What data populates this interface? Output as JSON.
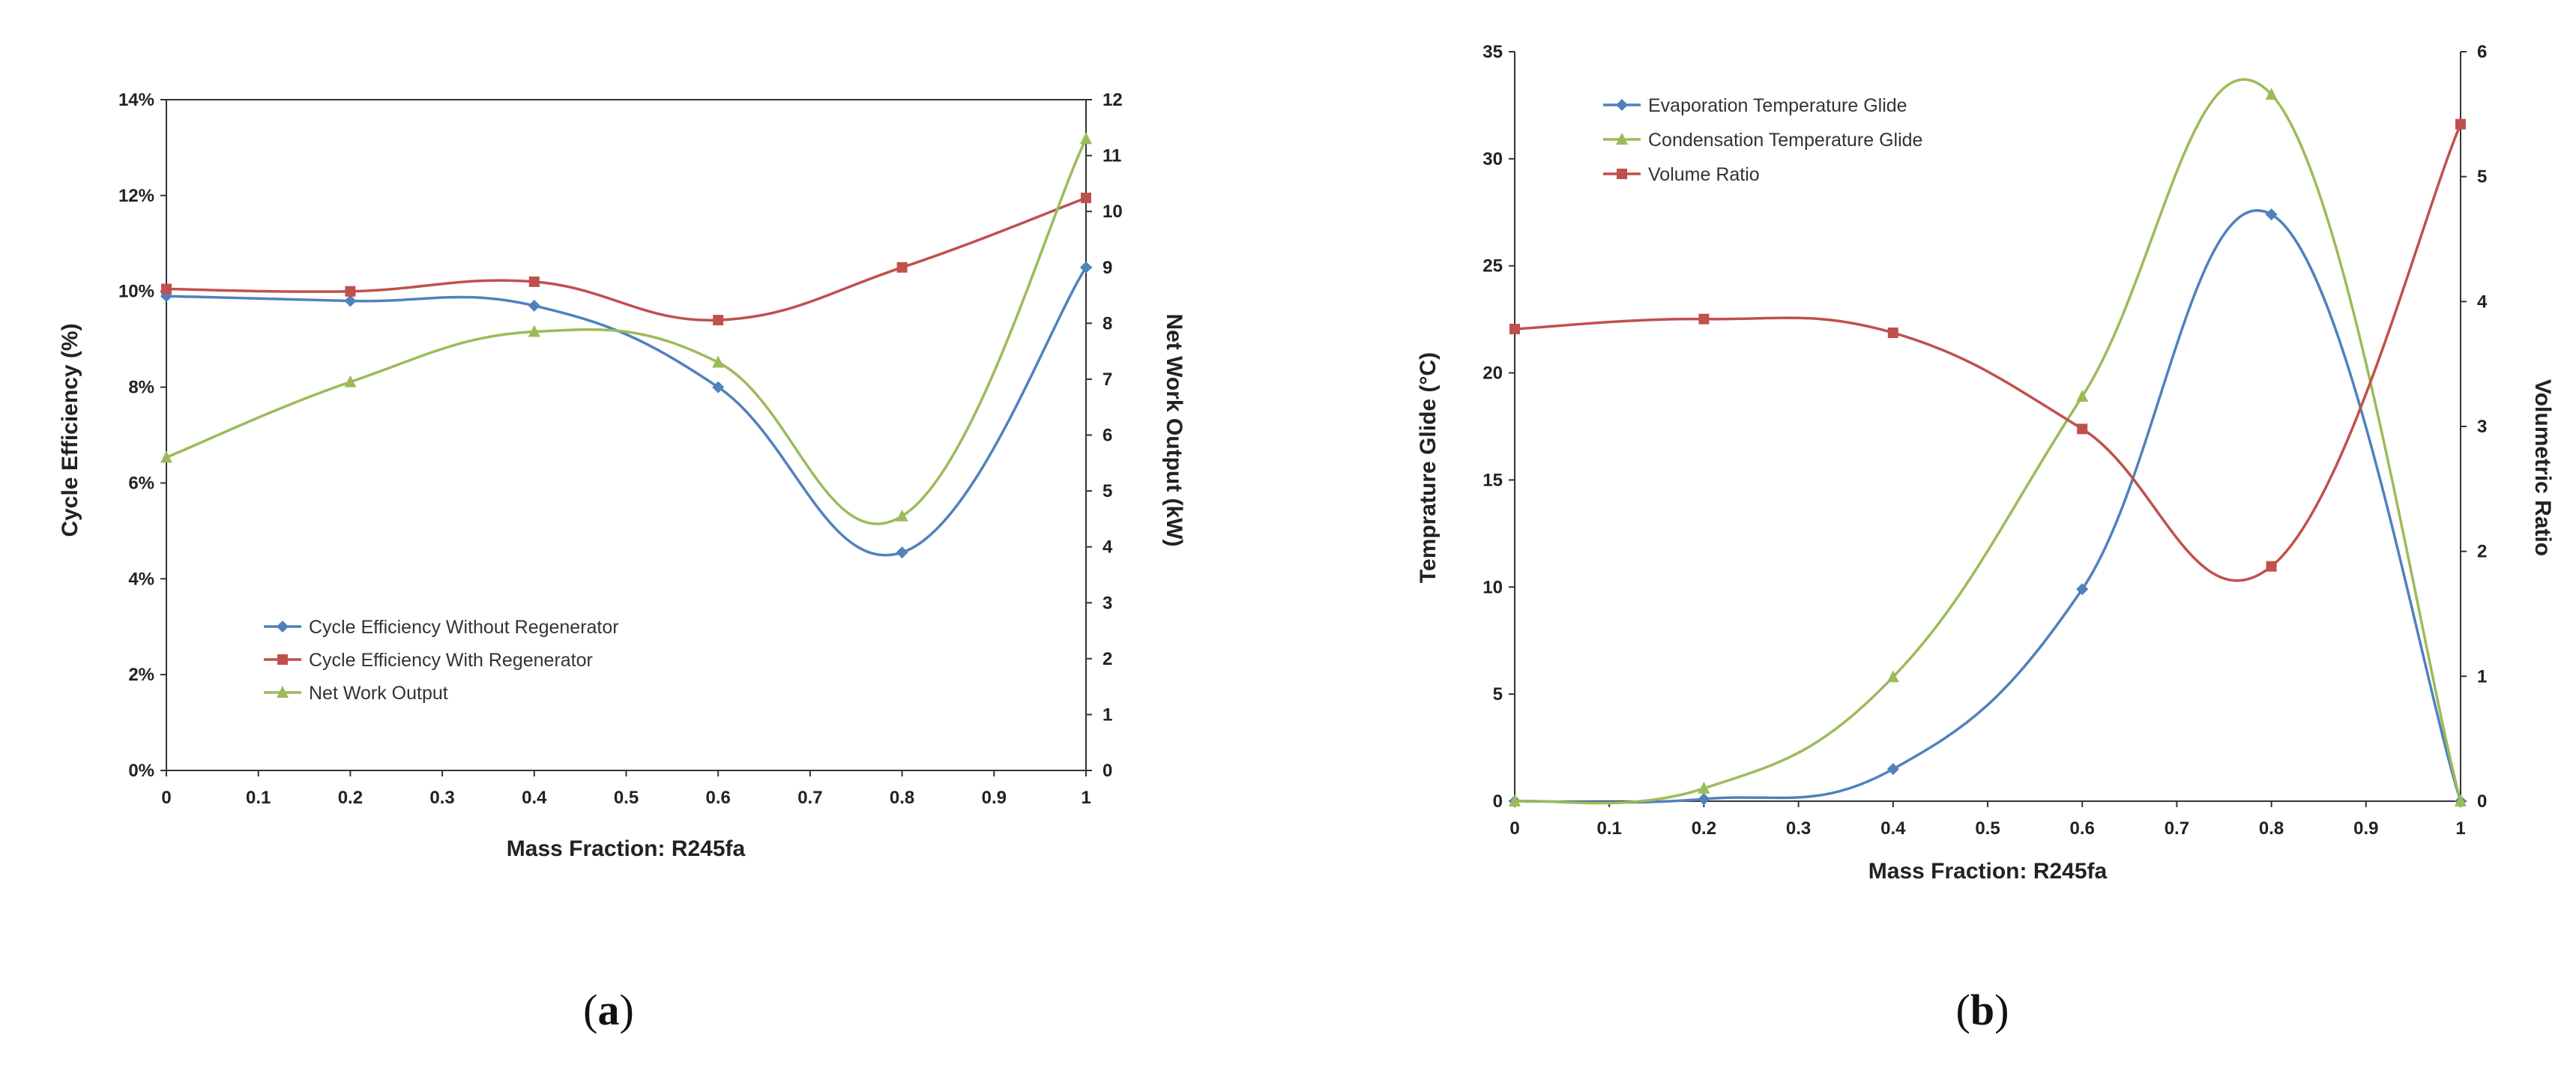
{
  "chart_data": [
    {
      "type": "line",
      "panel": "a",
      "caption_letter": "a",
      "xlabel": "Mass Fraction: R245fa",
      "ylabel": "Cycle Efficiency (%)",
      "y2label": "Net Work Output (kW)",
      "x": [
        0,
        0.2,
        0.4,
        0.6,
        0.8,
        1
      ],
      "xlim": [
        0,
        1
      ],
      "xticks": [
        "0",
        "0.1",
        "0.2",
        "0.3",
        "0.4",
        "0.5",
        "0.6",
        "0.7",
        "0.8",
        "0.9",
        "1"
      ],
      "ylim": [
        0,
        14
      ],
      "yticks": [
        "0%",
        "2%",
        "4%",
        "6%",
        "8%",
        "10%",
        "12%",
        "14%"
      ],
      "y2lim": [
        0,
        12
      ],
      "y2ticks": [
        "0",
        "1",
        "2",
        "3",
        "4",
        "5",
        "6",
        "7",
        "8",
        "9",
        "10",
        "11",
        "12"
      ],
      "legend_position": "bottom-left",
      "series": [
        {
          "name": "Cycle Efficiency Without Regenerator",
          "axis": "left",
          "color": "#4f81bd",
          "marker": "diamond",
          "values": [
            9.9,
            9.8,
            9.7,
            8.0,
            4.55,
            10.5
          ]
        },
        {
          "name": "Cycle Efficiency With Regenerator",
          "axis": "left",
          "color": "#c0504d",
          "marker": "square",
          "values": [
            10.05,
            10.0,
            10.2,
            9.4,
            10.5,
            11.95
          ]
        },
        {
          "name": "Net Work Output",
          "axis": "right",
          "color": "#9bbb59",
          "marker": "triangle",
          "values": [
            5.6,
            6.95,
            7.85,
            7.3,
            4.55,
            11.3
          ]
        }
      ]
    },
    {
      "type": "line",
      "panel": "b",
      "caption_letter": "b",
      "xlabel": "Mass Fraction: R245fa",
      "ylabel": "Temprature Glide (°C)",
      "y2label": "Volumetric Ratio",
      "x": [
        0,
        0.2,
        0.4,
        0.6,
        0.8,
        1
      ],
      "xlim": [
        0,
        1
      ],
      "xticks": [
        "0",
        "0.1",
        "0.2",
        "0.3",
        "0.4",
        "0.5",
        "0.6",
        "0.7",
        "0.8",
        "0.9",
        "1"
      ],
      "ylim": [
        0,
        35
      ],
      "yticks": [
        "0",
        "5",
        "10",
        "15",
        "20",
        "25",
        "30",
        "35"
      ],
      "y2lim": [
        0,
        6
      ],
      "y2ticks": [
        "0",
        "1",
        "2",
        "3",
        "4",
        "5",
        "6"
      ],
      "legend_position": "top-left",
      "series": [
        {
          "name": "Evaporation Temperature Glide",
          "axis": "left",
          "color": "#4f81bd",
          "marker": "diamond",
          "values": [
            0,
            0.1,
            1.5,
            9.9,
            27.4,
            0
          ]
        },
        {
          "name": "Condensation Temperature Glide",
          "axis": "left",
          "color": "#9bbb59",
          "marker": "triangle",
          "values": [
            0,
            0.6,
            5.8,
            18.9,
            33.0,
            0
          ]
        },
        {
          "name": "Volume Ratio",
          "axis": "right",
          "color": "#c0504d",
          "marker": "square",
          "values": [
            3.78,
            3.86,
            3.75,
            2.98,
            1.88,
            5.42
          ]
        }
      ]
    }
  ]
}
